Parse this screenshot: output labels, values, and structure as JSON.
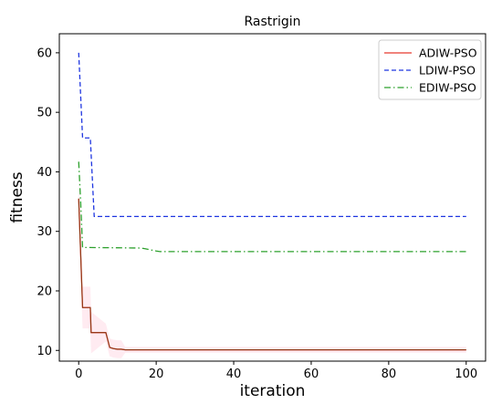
{
  "chart_data": {
    "type": "line",
    "title": "Rastrigin",
    "xlabel": "iteration",
    "ylabel": "fitness",
    "xlim": [
      -5,
      105
    ],
    "ylim": [
      8.2,
      63.2
    ],
    "xticks": [
      0,
      20,
      40,
      60,
      80,
      100
    ],
    "yticks": [
      10,
      20,
      30,
      40,
      50,
      60
    ],
    "grid": false,
    "legend_position": "top-right",
    "series": [
      {
        "name": "ADIW-PSO",
        "color": "#e8392f",
        "style": "solid",
        "x": [
          0,
          0.3,
          1,
          3,
          3.2,
          7,
          8,
          9,
          10,
          11,
          12,
          100
        ],
        "values": [
          35.5,
          30,
          17.2,
          17.2,
          13,
          13,
          10.5,
          10.3,
          10.2,
          10.2,
          10.1,
          10.1
        ]
      },
      {
        "name": "LDIW-PSO",
        "color": "#1f36e0",
        "style": "dashed",
        "x": [
          0,
          1,
          3,
          4,
          100
        ],
        "values": [
          60,
          45.7,
          45.7,
          32.5,
          32.5
        ]
      },
      {
        "name": "EDIW-PSO",
        "color": "#2ca02c",
        "style": "dashdot",
        "x": [
          0,
          0.5,
          1,
          16,
          17,
          20,
          21,
          100
        ],
        "values": [
          41.7,
          35,
          27.3,
          27.2,
          27.1,
          26.7,
          26.6,
          26.6
        ]
      }
    ]
  }
}
